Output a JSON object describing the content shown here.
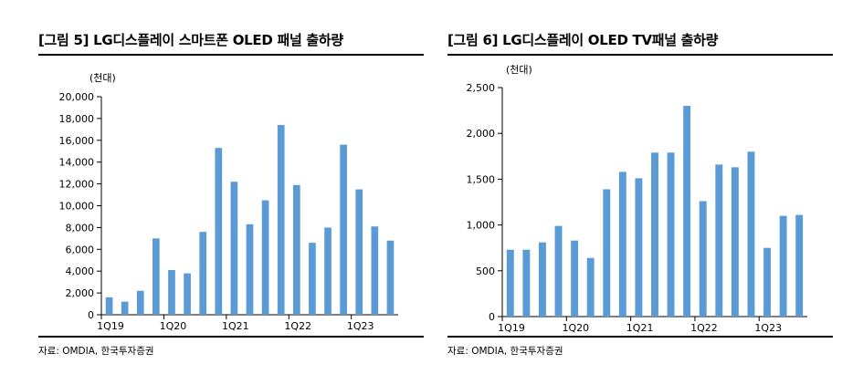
{
  "charts": [
    {
      "title": "[그림 5] LG디스플레이 스마트폰 OLED 패널 출하량",
      "source": "자료: OMDIA, 한국투자증권",
      "chart_data": {
        "type": "bar",
        "unit_label": "(천대)",
        "bar_color": "#5b9bd5",
        "ylim": [
          0,
          20000
        ],
        "yticks": [
          "0",
          "2,000",
          "4,000",
          "6,000",
          "8,000",
          "10,000",
          "12,000",
          "14,000",
          "16,000",
          "18,000",
          "20,000"
        ],
        "xtick_labels": [
          {
            "index": 0,
            "label": "1Q19"
          },
          {
            "index": 4,
            "label": "1Q20"
          },
          {
            "index": 8,
            "label": "1Q21"
          },
          {
            "index": 12,
            "label": "1Q22"
          },
          {
            "index": 16,
            "label": "1Q23"
          }
        ],
        "values": [
          1600,
          1200,
          2200,
          7000,
          4100,
          3800,
          7600,
          15300,
          12200,
          8300,
          10500,
          17400,
          11900,
          6600,
          8000,
          15600,
          11500,
          8100,
          6800
        ]
      }
    },
    {
      "title": "[그림 6] LG디스플레이 OLED TV패널 출하량",
      "source": "자료: OMDIA, 한국투자증권",
      "chart_data": {
        "type": "bar",
        "unit_label": "(천대)",
        "bar_color": "#5b9bd5",
        "ylim": [
          0,
          2500
        ],
        "yticks": [
          "0",
          "500",
          "1,000",
          "1,500",
          "2,000",
          "2,500"
        ],
        "xtick_labels": [
          {
            "index": 0,
            "label": "1Q19"
          },
          {
            "index": 4,
            "label": "1Q20"
          },
          {
            "index": 8,
            "label": "1Q21"
          },
          {
            "index": 12,
            "label": "1Q22"
          },
          {
            "index": 16,
            "label": "1Q23"
          }
        ],
        "values": [
          730,
          730,
          810,
          990,
          830,
          640,
          1390,
          1580,
          1510,
          1790,
          1790,
          2300,
          1260,
          1660,
          1630,
          1800,
          750,
          1100,
          1110
        ]
      }
    }
  ]
}
